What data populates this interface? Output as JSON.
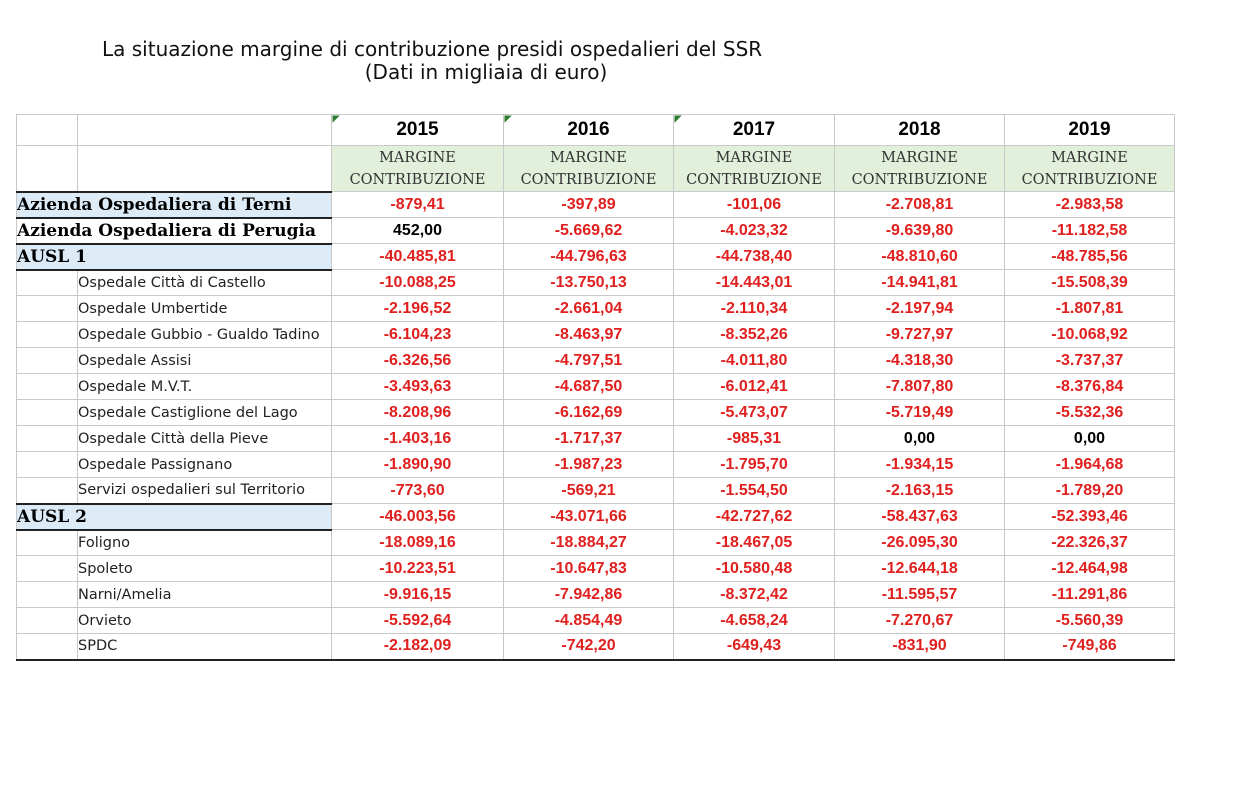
{
  "title": "La situazione margine di contribuzione presidi ospedalieri del SSR",
  "subtitle": "(Dati in migliaia di euro)",
  "table": {
    "years": [
      "2015",
      "2016",
      "2017",
      "2018",
      "2019"
    ],
    "subheader_line1": "MARGINE",
    "subheader_line2": "CONTRIBUZIONE",
    "rows": [
      {
        "label": "Azienda Ospedaliera di Terni",
        "level": "group",
        "values": [
          "-879,41",
          "-397,89",
          "-101,06",
          "-2.708,81",
          "-2.983,58"
        ]
      },
      {
        "label": "Azienda Ospedaliera di Perugia",
        "level": "group-white",
        "values": [
          "452,00",
          "-5.669,62",
          "-4.023,32",
          "-9.639,80",
          "-11.182,58"
        ]
      },
      {
        "label": "AUSL 1",
        "level": "group",
        "values": [
          "-40.485,81",
          "-44.796,63",
          "-44.738,40",
          "-48.810,60",
          "-48.785,56"
        ]
      },
      {
        "label": "Ospedale Città di Castello",
        "level": "sub",
        "values": [
          "-10.088,25",
          "-13.750,13",
          "-14.443,01",
          "-14.941,81",
          "-15.508,39"
        ]
      },
      {
        "label": "Ospedale Umbertide",
        "level": "sub",
        "values": [
          "-2.196,52",
          "-2.661,04",
          "-2.110,34",
          "-2.197,94",
          "-1.807,81"
        ]
      },
      {
        "label": "Ospedale Gubbio - Gualdo Tadino",
        "level": "sub",
        "values": [
          "-6.104,23",
          "-8.463,97",
          "-8.352,26",
          "-9.727,97",
          "-10.068,92"
        ]
      },
      {
        "label": "Ospedale Assisi",
        "level": "sub",
        "values": [
          "-6.326,56",
          "-4.797,51",
          "-4.011,80",
          "-4.318,30",
          "-3.737,37"
        ]
      },
      {
        "label": "Ospedale M.V.T.",
        "level": "sub",
        "values": [
          "-3.493,63",
          "-4.687,50",
          "-6.012,41",
          "-7.807,80",
          "-8.376,84"
        ]
      },
      {
        "label": "Ospedale Castiglione del Lago",
        "level": "sub",
        "values": [
          "-8.208,96",
          "-6.162,69",
          "-5.473,07",
          "-5.719,49",
          "-5.532,36"
        ]
      },
      {
        "label": "Ospedale Città della Pieve",
        "level": "sub",
        "values": [
          "-1.403,16",
          "-1.717,37",
          "-985,31",
          "0,00",
          "0,00"
        ]
      },
      {
        "label": "Ospedale Passignano",
        "level": "sub",
        "values": [
          "-1.890,90",
          "-1.987,23",
          "-1.795,70",
          "-1.934,15",
          "-1.964,68"
        ]
      },
      {
        "label": "Servizi ospedalieri sul Territorio",
        "level": "sub",
        "values": [
          "-773,60",
          "-569,21",
          "-1.554,50",
          "-2.163,15",
          "-1.789,20"
        ]
      },
      {
        "label": "AUSL 2",
        "level": "group",
        "values": [
          "-46.003,56",
          "-43.071,66",
          "-42.727,62",
          "-58.437,63",
          "-52.393,46"
        ]
      },
      {
        "label": "Foligno",
        "level": "sub",
        "values": [
          "-18.089,16",
          "-18.884,27",
          "-18.467,05",
          "-26.095,30",
          "-22.326,37"
        ]
      },
      {
        "label": "Spoleto",
        "level": "sub",
        "values": [
          "-10.223,51",
          "-10.647,83",
          "-10.580,48",
          "-12.644,18",
          "-12.464,98"
        ]
      },
      {
        "label": "Narni/Amelia",
        "level": "sub",
        "values": [
          "-9.916,15",
          "-7.942,86",
          "-8.372,42",
          "-11.595,57",
          "-11.291,86"
        ]
      },
      {
        "label": "Orvieto",
        "level": "sub",
        "values": [
          "-5.592,64",
          "-4.854,49",
          "-4.658,24",
          "-7.270,67",
          "-5.560,39"
        ]
      },
      {
        "label": "SPDC",
        "level": "sub",
        "values": [
          "-2.182,09",
          "-742,20",
          "-649,43",
          "-831,90",
          "-749,86"
        ]
      }
    ]
  },
  "colors": {
    "negative": "#e0201f",
    "positive": "#000000",
    "group_bg": "#ddebf7",
    "subheader_bg": "#e2efda"
  }
}
